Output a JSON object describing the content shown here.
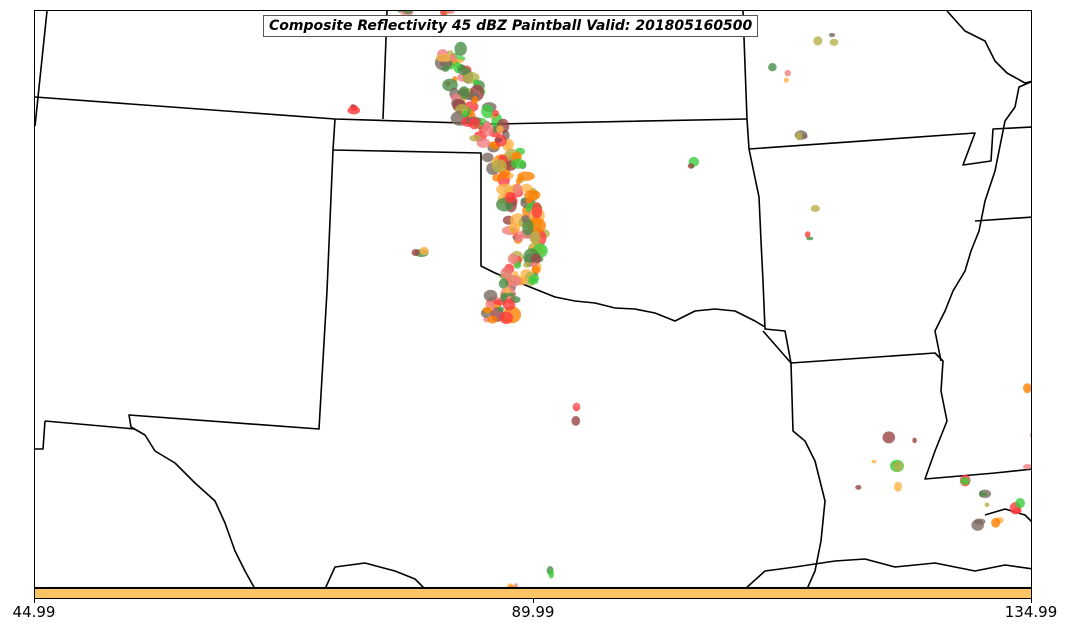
{
  "title": "Composite Reflectivity 45 dBZ Paintball Valid: 201805160500",
  "colors": {
    "colorbar_fill": "#fdc466",
    "boundary": "#000000",
    "paintball_palette": [
      "#ff3b3b",
      "#ff7f00",
      "#ffb347",
      "#3ccd3c",
      "#4a8f4a",
      "#9b4545",
      "#b5b04a",
      "#7a6a60",
      "#f08080"
    ]
  },
  "colorbar": {
    "tick_labels": [
      "44.99",
      "89.99",
      "134.99"
    ]
  }
}
